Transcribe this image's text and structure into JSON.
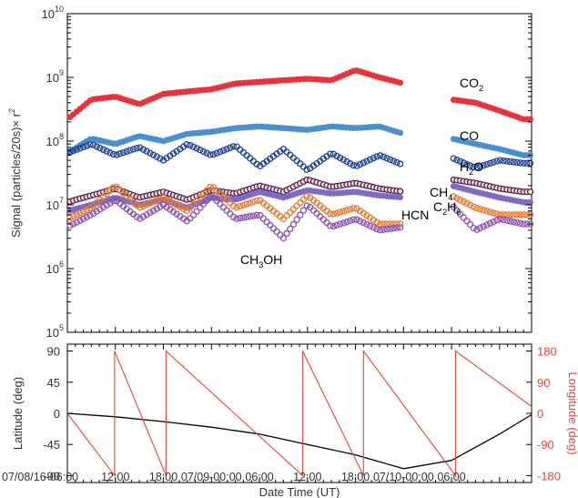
{
  "chart_data": [
    {
      "type": "scatter",
      "ylabel": "Signal (particles/20s)× r",
      "ylabel_sup": "2",
      "yscale": "log",
      "ylim": [
        100000,
        10000000000
      ],
      "ytick_labels": [
        {
          "base": "10",
          "exp": "5",
          "value": 100000
        },
        {
          "base": "10",
          "exp": "6",
          "value": 1000000
        },
        {
          "base": "10",
          "exp": "7",
          "value": 10000000
        },
        {
          "base": "10",
          "exp": "8",
          "value": 100000000
        },
        {
          "base": "10",
          "exp": "9",
          "value": 1000000000
        },
        {
          "base": "10",
          "exp": "10",
          "value": 10000000000
        }
      ],
      "xlim": [
        "2016-07-08T06:00",
        "2016-07-10T16:00"
      ],
      "grid": false,
      "series": [
        {
          "name": "CO",
          "sub": "2",
          "color": "#e8323c",
          "marker": "filled",
          "x": [
            "2016-07-08T06:00",
            "2016-07-08T09:00",
            "2016-07-08T12:00",
            "2016-07-08T15:00",
            "2016-07-08T18:00",
            "2016-07-08T21:00",
            "2016-07-09T00:00",
            "2016-07-09T03:00",
            "2016-07-09T06:00",
            "2016-07-09T09:00",
            "2016-07-09T12:00",
            "2016-07-09T15:00",
            "2016-07-09T18:00",
            "2016-07-09T21:00",
            "2016-07-10T00:00",
            "2016-07-10T06:00",
            "2016-07-10T09:00",
            "2016-07-10T12:00",
            "2016-07-10T15:00"
          ],
          "y": [
            220000000,
            450000000,
            500000000,
            380000000,
            550000000,
            600000000,
            650000000,
            800000000,
            850000000,
            900000000,
            950000000,
            900000000,
            1300000000,
            1000000000,
            800000000,
            450000000,
            400000000,
            300000000,
            220000000
          ]
        },
        {
          "name": "CO",
          "sub": "",
          "color": "#4a90cf",
          "marker": "filled",
          "x": [
            "2016-07-08T06:00",
            "2016-07-08T09:00",
            "2016-07-08T12:00",
            "2016-07-08T15:00",
            "2016-07-08T18:00",
            "2016-07-08T21:00",
            "2016-07-09T00:00",
            "2016-07-09T03:00",
            "2016-07-09T06:00",
            "2016-07-09T09:00",
            "2016-07-09T12:00",
            "2016-07-09T15:00",
            "2016-07-09T18:00",
            "2016-07-09T21:00",
            "2016-07-10T00:00",
            "2016-07-10T06:00",
            "2016-07-10T09:00",
            "2016-07-10T12:00",
            "2016-07-10T15:00"
          ],
          "y": [
            65000000,
            110000000,
            90000000,
            120000000,
            100000000,
            130000000,
            140000000,
            160000000,
            170000000,
            160000000,
            150000000,
            170000000,
            160000000,
            170000000,
            130000000,
            110000000,
            90000000,
            75000000,
            60000000
          ]
        },
        {
          "name": "H",
          "sub": "2",
          "suffix": "O",
          "color": "#1c3f94",
          "marker": "open",
          "x": [
            "2016-07-08T06:00",
            "2016-07-08T09:00",
            "2016-07-08T12:00",
            "2016-07-08T15:00",
            "2016-07-08T18:00",
            "2016-07-08T21:00",
            "2016-07-09T00:00",
            "2016-07-09T03:00",
            "2016-07-09T06:00",
            "2016-07-09T09:00",
            "2016-07-09T12:00",
            "2016-07-09T15:00",
            "2016-07-09T18:00",
            "2016-07-09T21:00",
            "2016-07-10T00:00",
            "2016-07-10T06:00",
            "2016-07-10T09:00",
            "2016-07-10T12:00",
            "2016-07-10T15:00"
          ],
          "y": [
            65000000,
            90000000,
            60000000,
            80000000,
            50000000,
            90000000,
            60000000,
            85000000,
            40000000,
            75000000,
            35000000,
            65000000,
            40000000,
            60000000,
            42000000,
            55000000,
            38000000,
            50000000,
            45000000
          ]
        },
        {
          "name": "CH",
          "sub": "4",
          "color": "#4a1a3a",
          "marker": "open-dark",
          "x": [
            "2016-07-08T06:00",
            "2016-07-08T09:00",
            "2016-07-08T12:00",
            "2016-07-08T15:00",
            "2016-07-08T18:00",
            "2016-07-08T21:00",
            "2016-07-09T00:00",
            "2016-07-09T03:00",
            "2016-07-09T06:00",
            "2016-07-09T09:00",
            "2016-07-09T12:00",
            "2016-07-09T15:00",
            "2016-07-09T18:00",
            "2016-07-09T21:00",
            "2016-07-10T00:00",
            "2016-07-10T06:00",
            "2016-07-10T09:00",
            "2016-07-10T12:00",
            "2016-07-10T15:00"
          ],
          "y": [
            11000000,
            14000000,
            18000000,
            13000000,
            16000000,
            12000000,
            17000000,
            15000000,
            20000000,
            16000000,
            25000000,
            19000000,
            22000000,
            18000000,
            16000000,
            25000000,
            22000000,
            18000000,
            16000000
          ]
        },
        {
          "name": "C",
          "sub": "2",
          "suffix": "H",
          "sub2": "6",
          "color": "#7d6bc6",
          "marker": "filled",
          "x": [
            "2016-07-08T06:00",
            "2016-07-08T09:00",
            "2016-07-08T12:00",
            "2016-07-08T15:00",
            "2016-07-08T18:00",
            "2016-07-08T21:00",
            "2016-07-09T00:00",
            "2016-07-09T03:00",
            "2016-07-09T06:00",
            "2016-07-09T09:00",
            "2016-07-09T12:00",
            "2016-07-09T15:00",
            "2016-07-09T18:00",
            "2016-07-09T21:00",
            "2016-07-10T00:00",
            "2016-07-10T06:00",
            "2016-07-10T09:00",
            "2016-07-10T12:00",
            "2016-07-10T15:00"
          ],
          "y": [
            8000000,
            10000000,
            13000000,
            10000000,
            12000000,
            9000000,
            13000000,
            12000000,
            16000000,
            13000000,
            17000000,
            15000000,
            16000000,
            14000000,
            13000000,
            20000000,
            16000000,
            13000000,
            11000000
          ]
        },
        {
          "name": "HCN",
          "sub": "",
          "color": "#e8782a",
          "marker": "open",
          "x": [
            "2016-07-08T06:00",
            "2016-07-08T09:00",
            "2016-07-08T12:00",
            "2016-07-08T15:00",
            "2016-07-08T18:00",
            "2016-07-08T21:00",
            "2016-07-09T00:00",
            "2016-07-09T03:00",
            "2016-07-09T06:00",
            "2016-07-09T09:00",
            "2016-07-09T12:00",
            "2016-07-09T15:00",
            "2016-07-09T18:00",
            "2016-07-09T21:00",
            "2016-07-10T00:00",
            "2016-07-10T06:00",
            "2016-07-10T09:00",
            "2016-07-10T12:00",
            "2016-07-10T15:00"
          ],
          "y": [
            6000000,
            9000000,
            20000000,
            9000000,
            13000000,
            8000000,
            20000000,
            9000000,
            12000000,
            6000000,
            14000000,
            7000000,
            9000000,
            5000000,
            5000000,
            14000000,
            9000000,
            7000000,
            7000000
          ]
        },
        {
          "name": "CH",
          "sub": "3",
          "suffix": "OH",
          "color": "#8a4fb4",
          "marker": "open",
          "x": [
            "2016-07-08T06:00",
            "2016-07-08T09:00",
            "2016-07-08T12:00",
            "2016-07-08T15:00",
            "2016-07-08T18:00",
            "2016-07-08T21:00",
            "2016-07-09T00:00",
            "2016-07-09T03:00",
            "2016-07-09T06:00",
            "2016-07-09T09:00",
            "2016-07-09T12:00",
            "2016-07-09T15:00",
            "2016-07-09T18:00",
            "2016-07-09T21:00",
            "2016-07-10T00:00",
            "2016-07-10T06:00",
            "2016-07-10T09:00",
            "2016-07-10T12:00",
            "2016-07-10T15:00"
          ],
          "y": [
            4500000,
            7000000,
            12000000,
            6000000,
            10000000,
            5500000,
            14000000,
            6000000,
            7000000,
            3000000,
            10000000,
            4500000,
            6000000,
            4000000,
            4500000,
            10000000,
            4000000,
            6000000,
            5000000
          ]
        }
      ],
      "series_labels": [
        {
          "series": "CO2"
        },
        {
          "series": "CO"
        },
        {
          "series": "H2O"
        },
        {
          "series": "CH4"
        },
        {
          "series": "C2H6"
        },
        {
          "series": "HCN"
        },
        {
          "series": "CH3OH"
        }
      ]
    },
    {
      "type": "line",
      "xlabel": "Date Time (UT)",
      "ylabel": "Latitude (deg)",
      "ylabel2": "Longitude (deg)",
      "ylim": [
        -100,
        100
      ],
      "ylim2": [
        -200,
        200
      ],
      "yticks": [
        "90",
        "45",
        "0",
        "-45",
        "-90"
      ],
      "yticks2": [
        "180",
        "90",
        "0",
        "-90",
        "-180"
      ],
      "xtick_labels": [
        "07/08/16-06:00",
        "12:00",
        "18:00",
        "07/09-00:00",
        "06:00",
        "12:00",
        "18:00",
        "07/10-00:00",
        "06:00"
      ],
      "xlim": [
        "2016-07-08T06:00",
        "2016-07-10T16:00"
      ],
      "series": [
        {
          "name": "Latitude",
          "color": "#000000",
          "x": [
            "2016-07-08T06:00",
            "2016-07-08T12:00",
            "2016-07-08T18:00",
            "2016-07-09T00:00",
            "2016-07-09T06:00",
            "2016-07-09T12:00",
            "2016-07-09T18:00",
            "2016-07-10T00:00",
            "2016-07-10T06:00",
            "2016-07-10T12:00",
            "2016-07-10T16:00"
          ],
          "y": [
            0,
            -5,
            -12,
            -20,
            -30,
            -45,
            -60,
            -80,
            -68,
            -30,
            -2
          ]
        },
        {
          "name": "Longitude",
          "color": "#e8443a",
          "x": [
            "2016-07-08T06:00",
            "2016-07-08T11:54",
            "2016-07-08T11:54",
            "2016-07-08T18:20",
            "2016-07-08T18:20",
            "2016-07-09T11:24",
            "2016-07-09T11:24",
            "2016-07-09T19:00",
            "2016-07-09T19:00",
            "2016-07-10T06:30",
            "2016-07-10T06:30",
            "2016-07-10T16:00"
          ],
          "y": [
            0,
            -180,
            180,
            -180,
            180,
            -180,
            180,
            -180,
            180,
            -180,
            180,
            20
          ]
        }
      ]
    }
  ]
}
